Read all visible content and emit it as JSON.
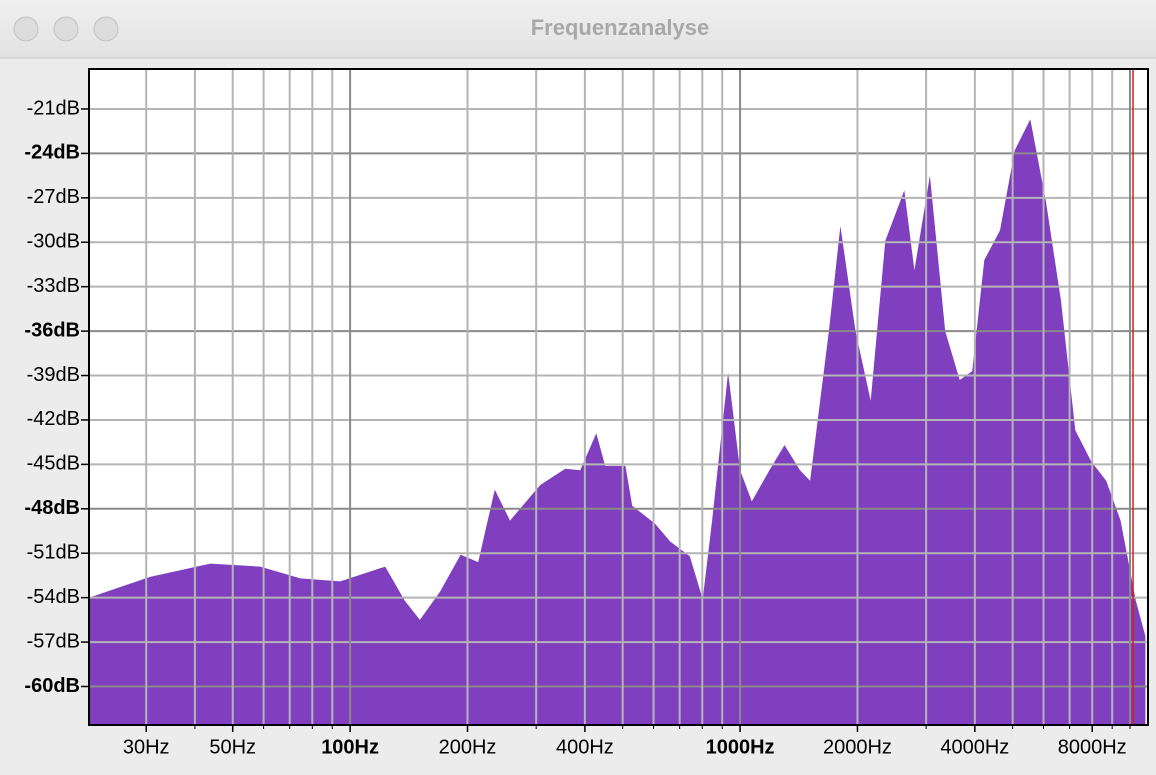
{
  "window_title": "Frequenzanalyse",
  "chart_data": {
    "type": "area",
    "log_x": true,
    "color": "#7f3fbf",
    "grid": true,
    "xlim": [
      21.4,
      11120
    ],
    "ylim": [
      -62.6,
      -18.3
    ],
    "xticks": [
      {
        "value": 30,
        "label": "30Hz"
      },
      {
        "value": 50,
        "label": "50Hz"
      },
      {
        "value": 100,
        "label": "100Hz"
      },
      {
        "value": 200,
        "label": "200Hz"
      },
      {
        "value": 400,
        "label": "400Hz"
      },
      {
        "value": 1000,
        "label": "1000Hz"
      },
      {
        "value": 2000,
        "label": "2000Hz"
      },
      {
        "value": 4000,
        "label": "4000Hz"
      },
      {
        "value": 8000,
        "label": "8000Hz"
      }
    ],
    "x_minor_ticks": [
      40,
      60,
      70,
      80,
      90,
      300,
      500,
      600,
      700,
      800,
      900,
      3000,
      5000,
      6000,
      7000,
      9000,
      10000
    ],
    "yticks": [
      {
        "value": -21,
        "label": "-21dB"
      },
      {
        "value": -24,
        "label": "-24dB"
      },
      {
        "value": -27,
        "label": "-27dB"
      },
      {
        "value": -30,
        "label": "-30dB"
      },
      {
        "value": -33,
        "label": "-33dB"
      },
      {
        "value": -36,
        "label": "-36dB"
      },
      {
        "value": -39,
        "label": "-39dB"
      },
      {
        "value": -42,
        "label": "-42dB"
      },
      {
        "value": -45,
        "label": "-45dB"
      },
      {
        "value": -48,
        "label": "-48dB"
      },
      {
        "value": -51,
        "label": "-51dB"
      },
      {
        "value": -54,
        "label": "-54dB"
      },
      {
        "value": -57,
        "label": "-57dB"
      },
      {
        "value": -60,
        "label": "-60dB"
      }
    ],
    "cursor": {
      "x": 10180,
      "color": "#d02020"
    },
    "x": [
      21.4,
      30.7,
      43.8,
      58.8,
      74.5,
      94.3,
      123,
      138,
      151,
      170,
      192,
      213,
      235,
      257,
      307,
      356,
      389,
      428,
      451,
      508,
      529,
      605,
      661,
      743,
      802,
      848,
      932,
      1000,
      1072,
      1189,
      1300,
      1425,
      1512,
      1690,
      1808,
      1977,
      2163,
      2357,
      2637,
      2800,
      3067,
      3358,
      3658,
      3939,
      4230,
      4640,
      5060,
      5550,
      6080,
      6650,
      7240,
      7950,
      8690,
      9460,
      10350,
      10950
    ],
    "values": [
      -54.0,
      -52.6,
      -51.7,
      -51.9,
      -52.7,
      -52.9,
      -51.9,
      -54.2,
      -55.5,
      -53.6,
      -51.1,
      -51.6,
      -46.7,
      -48.8,
      -46.4,
      -45.3,
      -45.4,
      -42.9,
      -45.1,
      -45.1,
      -47.8,
      -49.0,
      -50.2,
      -51.2,
      -54.1,
      -48.8,
      -38.8,
      -45.4,
      -47.5,
      -45.4,
      -43.7,
      -45.4,
      -46.1,
      -36.0,
      -28.9,
      -36.0,
      -40.7,
      -29.9,
      -26.5,
      -31.9,
      -25.5,
      -36.0,
      -39.3,
      -38.7,
      -31.2,
      -29.2,
      -23.8,
      -21.7,
      -27.2,
      -33.9,
      -42.7,
      -44.8,
      -46.1,
      -48.8,
      -54.2,
      -56.6
    ]
  }
}
